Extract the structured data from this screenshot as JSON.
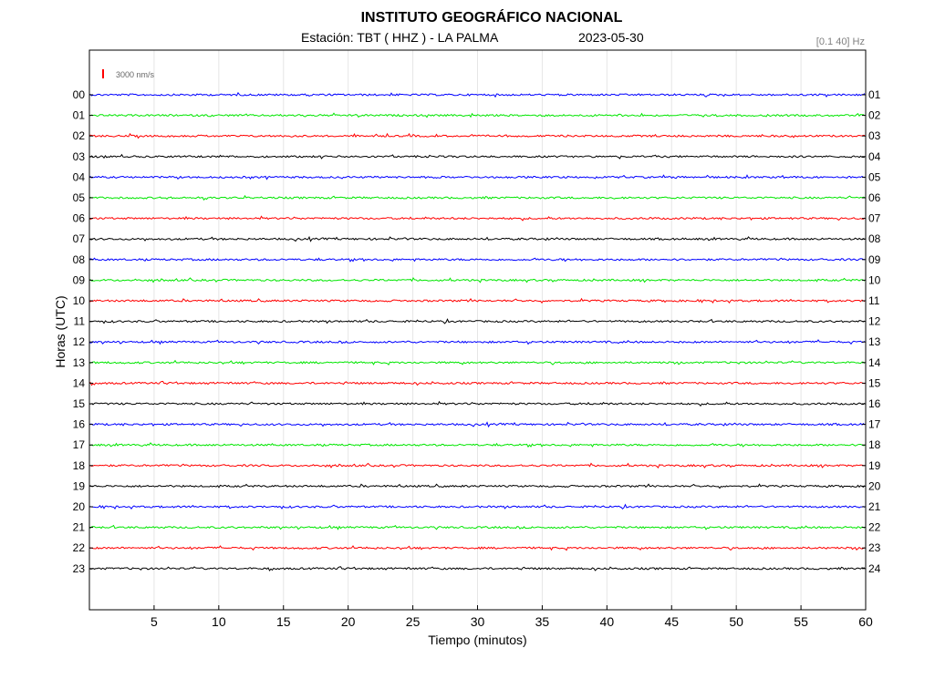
{
  "header": {
    "title": "INSTITUTO GEOGRÁFICO NACIONAL",
    "station": "Estación:  TBT ( HHZ ) - LA PALMA",
    "date": "2023-05-30",
    "filter": "[0.1 40] Hz"
  },
  "chart_data": {
    "type": "line",
    "title": "INSTITUTO GEOGRÁFICO NACIONAL",
    "xlabel": "Tiempo (minutos)",
    "ylabel": "Horas (UTC)",
    "xlim": [
      0,
      60
    ],
    "xticks": [
      5,
      10,
      15,
      20,
      25,
      30,
      35,
      40,
      45,
      50,
      55,
      60
    ],
    "scale_label": "3000 nm/s",
    "scale_color": "#ff0000",
    "grid": true,
    "colors": [
      "#0000ff",
      "#00e600",
      "#ff0000",
      "#000000"
    ],
    "left_labels": [
      "00",
      "01",
      "02",
      "03",
      "04",
      "05",
      "06",
      "07",
      "08",
      "09",
      "10",
      "11",
      "12",
      "13",
      "14",
      "15",
      "16",
      "17",
      "18",
      "19",
      "20",
      "21",
      "22",
      "23"
    ],
    "right_labels": [
      "01",
      "02",
      "03",
      "04",
      "05",
      "06",
      "07",
      "08",
      "09",
      "10",
      "11",
      "12",
      "13",
      "14",
      "15",
      "16",
      "17",
      "18",
      "19",
      "20",
      "21",
      "22",
      "23",
      "24"
    ],
    "series": [
      {
        "values": [
          0,
          60
        ],
        "color": "#0000ff"
      },
      {
        "values": [
          0,
          60
        ],
        "color": "#00e600"
      },
      {
        "values": [
          0,
          60
        ],
        "color": "#ff0000"
      },
      {
        "values": [
          0,
          60
        ],
        "color": "#000000"
      },
      {
        "values": [
          0,
          60
        ],
        "color": "#0000ff"
      },
      {
        "values": [
          0,
          60
        ],
        "color": "#00e600"
      },
      {
        "values": [
          0,
          60
        ],
        "color": "#ff0000"
      },
      {
        "values": [
          0,
          60
        ],
        "color": "#000000"
      },
      {
        "values": [
          0,
          60
        ],
        "color": "#0000ff"
      },
      {
        "values": [
          0,
          60
        ],
        "color": "#00e600"
      },
      {
        "values": [
          0,
          60
        ],
        "color": "#ff0000"
      },
      {
        "values": [
          0,
          60
        ],
        "color": "#000000"
      },
      {
        "values": [
          0,
          60
        ],
        "color": "#0000ff"
      },
      {
        "values": [
          0,
          60
        ],
        "color": "#00e600"
      },
      {
        "values": [
          0,
          60
        ],
        "color": "#ff0000"
      },
      {
        "values": [
          0,
          60
        ],
        "color": "#000000"
      },
      {
        "values": [
          0,
          60
        ],
        "color": "#0000ff"
      },
      {
        "values": [
          0,
          60
        ],
        "color": "#00e600"
      },
      {
        "values": [
          0,
          60
        ],
        "color": "#ff0000"
      },
      {
        "values": [
          0,
          60
        ],
        "color": "#000000"
      },
      {
        "values": [
          0,
          60
        ],
        "color": "#0000ff"
      },
      {
        "values": [
          0,
          60
        ],
        "color": "#00e600"
      },
      {
        "values": [
          0,
          60
        ],
        "color": "#ff0000"
      },
      {
        "values": [
          0,
          60
        ],
        "color": "#000000"
      }
    ]
  }
}
